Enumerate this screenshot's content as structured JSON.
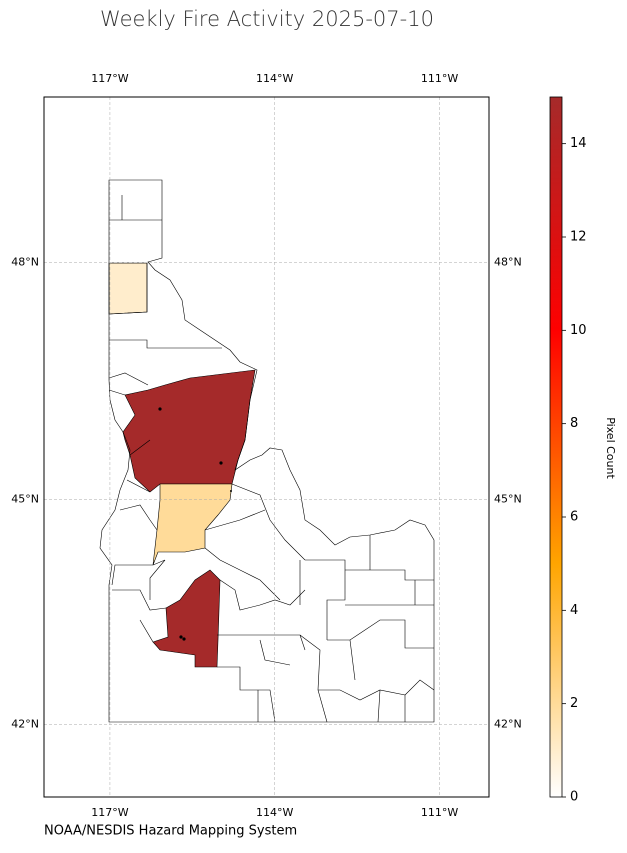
{
  "chart_data": {
    "type": "choropleth",
    "title": "Weekly Fire Activity 2025-07-10",
    "source": "NOAA/NESDIS Hazard Mapping System",
    "colorbar_label": "Pixel Count",
    "values": [
      1,
      15,
      2,
      15
    ],
    "colormap": [
      "#ffffff",
      "#ffa500",
      "#ff0000",
      "#a52a2a"
    ],
    "clim": [
      0,
      15
    ],
    "cticks": [
      0,
      2,
      4,
      6,
      8,
      10,
      12,
      14
    ],
    "projection": "mercator",
    "xlim": [
      -118.2,
      -110.1
    ],
    "ylim": [
      41,
      50
    ],
    "xticks": [
      {
        "value": -117,
        "label": "117°W"
      },
      {
        "value": -114,
        "label": "114°W"
      },
      {
        "value": -111,
        "label": "111°W"
      }
    ],
    "yticks": [
      {
        "value": 42,
        "label": "42°N"
      },
      {
        "value": 45,
        "label": "45°N"
      },
      {
        "value": 48,
        "label": "48°N"
      }
    ],
    "grid": true
  }
}
